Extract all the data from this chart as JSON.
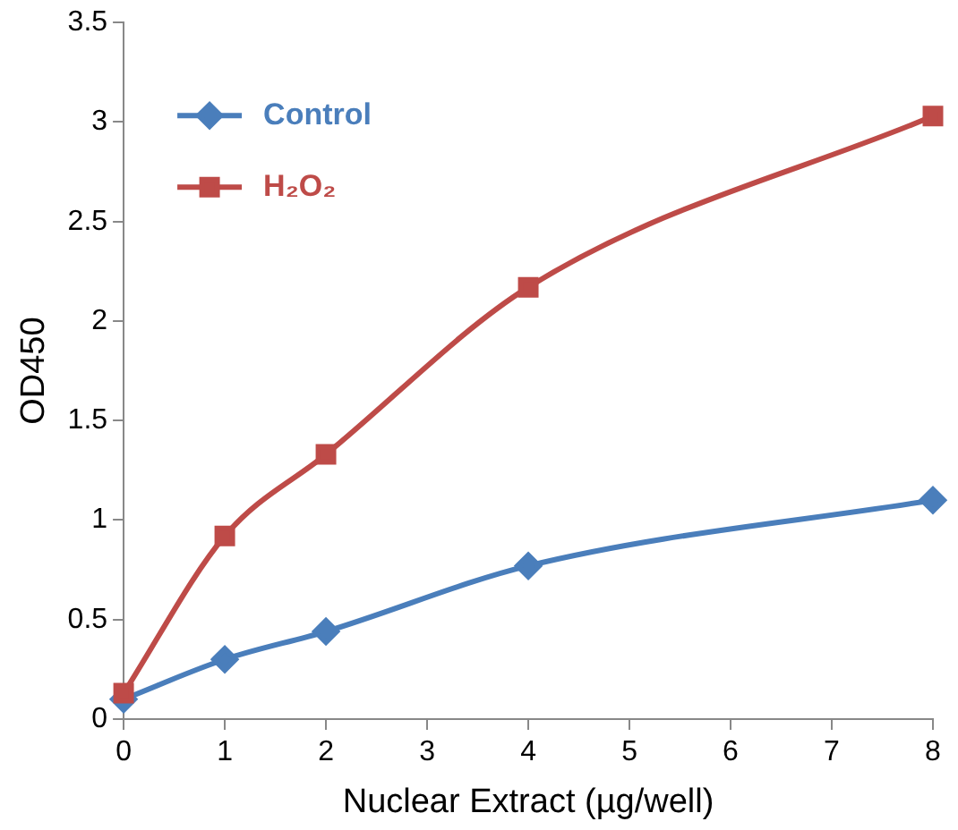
{
  "chart_data": {
    "type": "line",
    "xlabel": "Nuclear Extract (µg/well)",
    "ylabel": "OD450",
    "x": [
      0,
      1,
      2,
      4,
      8
    ],
    "series": [
      {
        "name": "Control",
        "color": "#4a7ebb",
        "marker": "diamond",
        "values": [
          0.1,
          0.3,
          0.44,
          0.77,
          1.1
        ]
      },
      {
        "name": "H₂O₂",
        "color": "#be4b48",
        "marker": "square",
        "values": [
          0.13,
          0.92,
          1.33,
          2.17,
          3.03
        ]
      }
    ],
    "xlim": [
      0,
      8
    ],
    "xticks": [
      0,
      1,
      2,
      3,
      4,
      5,
      6,
      7,
      8
    ],
    "ylim": [
      0,
      3.5
    ],
    "yticks": [
      0,
      0.5,
      1,
      1.5,
      2,
      2.5,
      3,
      3.5
    ],
    "grid": false,
    "legend": "top left",
    "line_style": "solid"
  }
}
